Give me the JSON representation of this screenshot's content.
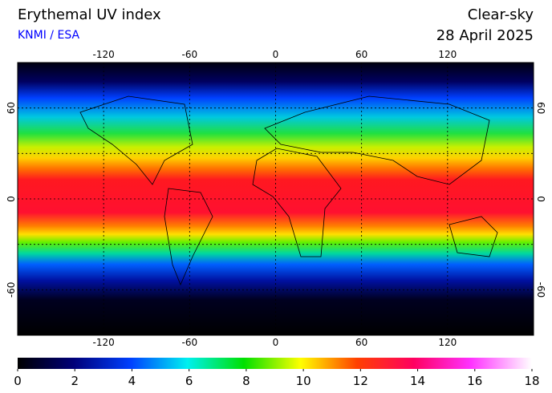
{
  "header": {
    "title": "Erythemal UV index",
    "source": "KNMI / ESA",
    "condition": "Clear-sky",
    "date": "28 April 2025"
  },
  "map": {
    "lon_range": [
      -180,
      180
    ],
    "lat_range": [
      -90,
      90
    ],
    "lon_ticks": [
      -120,
      -60,
      0,
      60,
      120
    ],
    "lat_ticks": [
      60,
      0,
      -60
    ]
  },
  "colorbar": {
    "range": [
      0,
      18
    ],
    "ticks": [
      0,
      2,
      4,
      6,
      8,
      10,
      12,
      14,
      16,
      18
    ]
  }
}
